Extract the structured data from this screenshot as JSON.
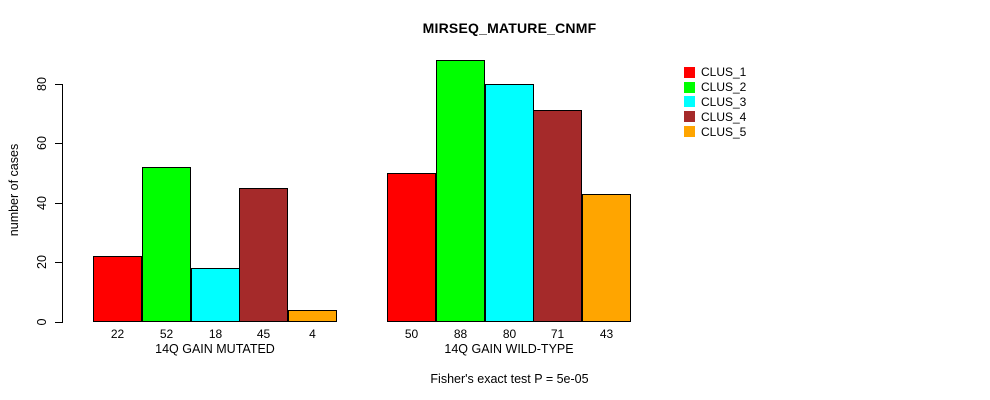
{
  "chart_data": {
    "type": "bar",
    "title": "MIRSEQ_MATURE_CNMF",
    "ylabel": "number of cases",
    "xlabel": "",
    "ylim": [
      0,
      88
    ],
    "yticks": [
      0,
      20,
      40,
      60,
      80
    ],
    "grid": false,
    "legend_position": "right",
    "axis_color": "#000000",
    "background_color": "#FFFFFF",
    "categories": [
      "14Q GAIN MUTATED",
      "14Q GAIN WILD-TYPE"
    ],
    "series": [
      {
        "name": "CLUS_1",
        "color": "#FF0000",
        "values": [
          22,
          50
        ]
      },
      {
        "name": "CLUS_2",
        "color": "#00FF00",
        "values": [
          52,
          88
        ]
      },
      {
        "name": "CLUS_3",
        "color": "#00FFFF",
        "values": [
          18,
          80
        ]
      },
      {
        "name": "CLUS_4",
        "color": "#A52A2A",
        "values": [
          45,
          71
        ]
      },
      {
        "name": "CLUS_5",
        "color": "#FFA500",
        "values": [
          4,
          43
        ]
      }
    ],
    "bar_value_labels": [
      [
        22,
        52,
        18,
        45,
        4
      ],
      [
        50,
        88,
        80,
        71,
        43
      ]
    ],
    "annotation": "Fisher's exact test P = 5e-05"
  }
}
